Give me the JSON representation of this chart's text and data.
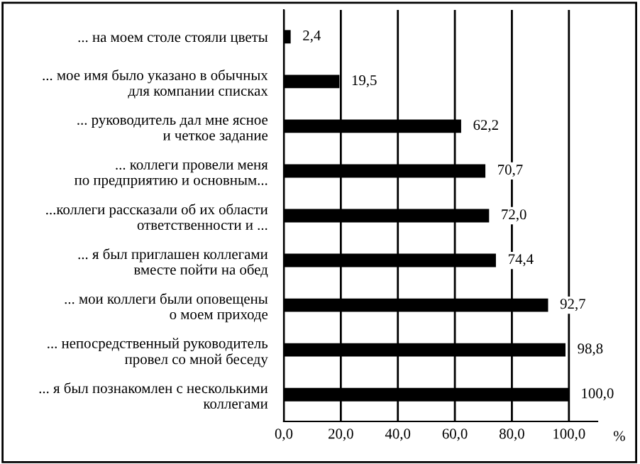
{
  "chart_data": {
    "type": "bar",
    "orientation": "horizontal",
    "xlabel": "%",
    "categories": [
      "... на моем столе стояли цветы",
      "... мое имя было указано в обычных\nдля компании списках",
      "... руководитель дал мне ясное\nи четкое задание",
      "... коллеги провели меня\nпо предприятию и основным...",
      "...коллеги рассказали об их области\nответственности и ...",
      "... я был приглашен коллегами\nвместе пойти на обед",
      "... мои коллеги были оповещены\nо моем приходе",
      "... непосредственный руководитель\nпровел со мной беседу",
      "... я был познакомлен с несколькими\nколлегами"
    ],
    "values": [
      2.4,
      19.5,
      62.2,
      70.7,
      72.0,
      74.4,
      92.7,
      98.8,
      100.0
    ],
    "value_labels": [
      "2,4",
      "19,5",
      "62,2",
      "70,7",
      "72,0",
      "74,4",
      "92,7",
      "98,8",
      "100,0"
    ],
    "color": "#000000",
    "xlim": [
      0,
      110
    ],
    "xticks": [
      {
        "value": 0,
        "label": "0,0"
      },
      {
        "value": 20,
        "label": "20,0"
      },
      {
        "value": 40,
        "label": "40,0"
      },
      {
        "value": 60,
        "label": "60,0"
      },
      {
        "value": 80,
        "label": "80,0"
      },
      {
        "value": 100,
        "label": "100,0"
      }
    ],
    "grid": "x",
    "legend": false
  }
}
